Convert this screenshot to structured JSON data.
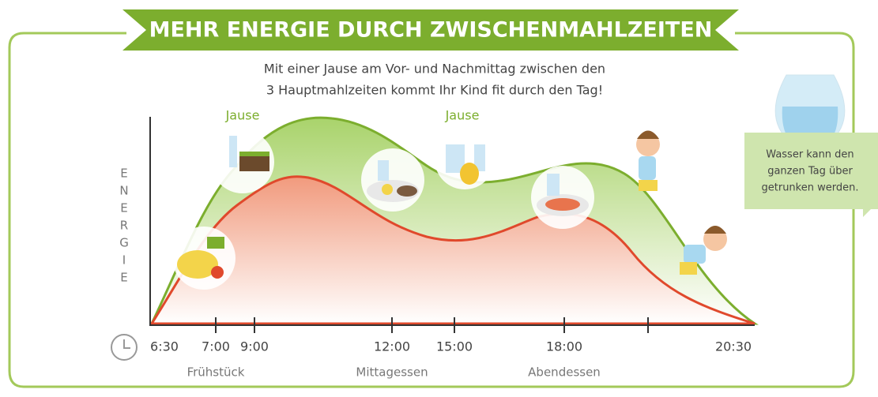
{
  "title": "MEHR ENERGIE DURCH ZWISCHENMAHLZEITEN",
  "subtitle": [
    "Mit einer Jause am Vor- und Nachmittag zwischen den",
    "3 Hauptmahlzeiten kommt Ihr Kind fit durch den Tag!"
  ],
  "axis_label": [
    "E",
    "N",
    "E",
    "R",
    "G",
    "I",
    "E"
  ],
  "times": [
    "6:30",
    "7:00",
    "9:00",
    "12:00",
    "15:00",
    "18:00",
    "20:30"
  ],
  "meals": [
    "Frühstück",
    "Mittagessen",
    "Abendessen"
  ],
  "snacks": [
    "Jause",
    "Jause"
  ],
  "note": [
    "Wasser kann den",
    "ganzen Tag über",
    "getrunken werden."
  ]
}
